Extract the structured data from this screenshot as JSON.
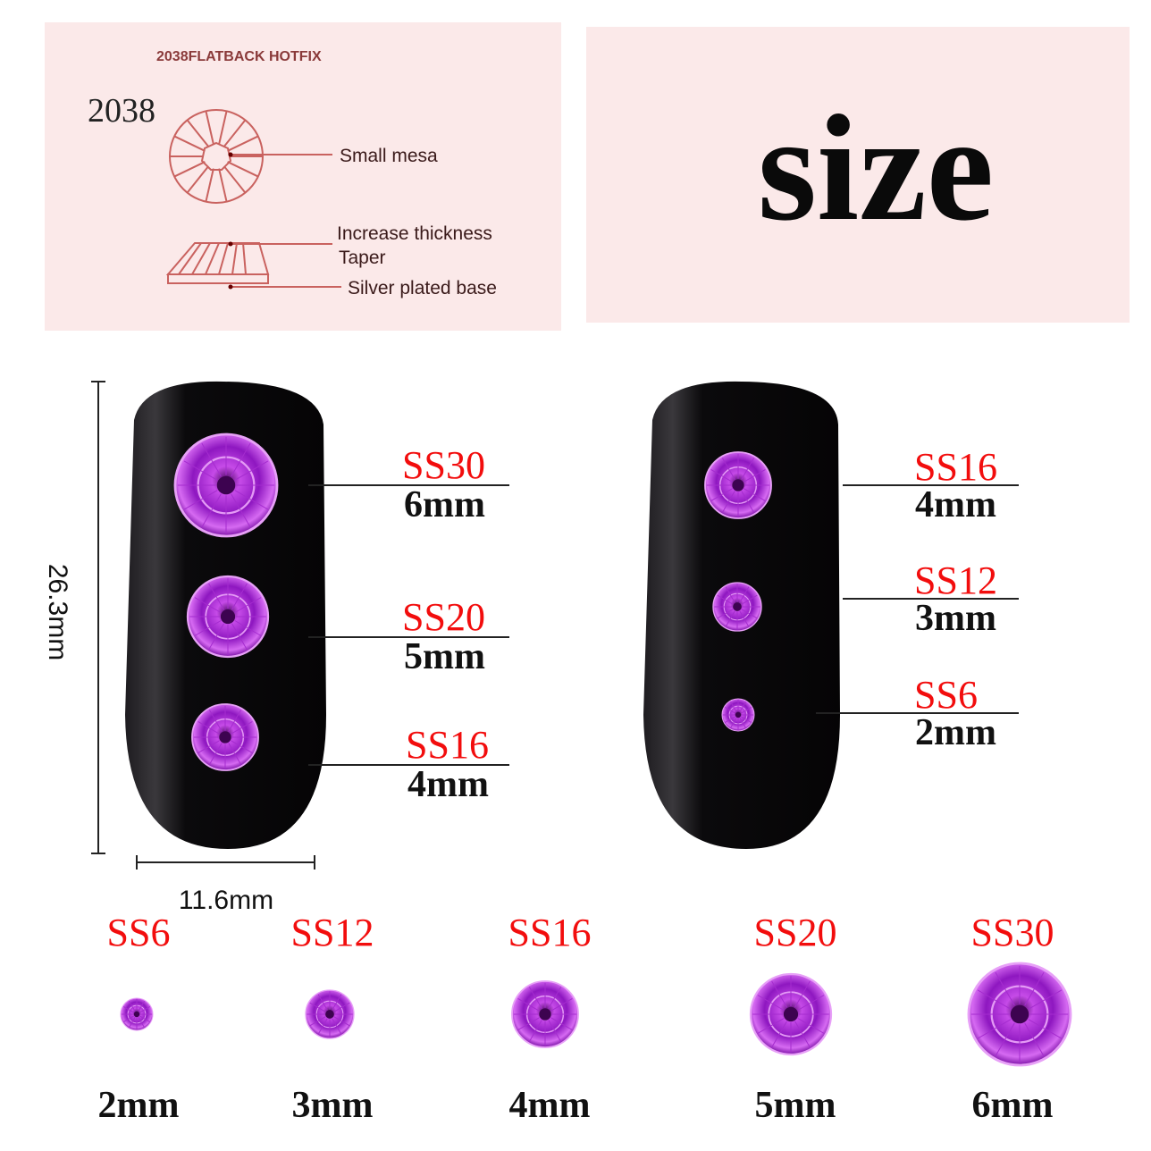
{
  "diagram": {
    "heading": "2038FLATBACK HOTFIX",
    "model": "2038",
    "labels": {
      "mesa": "Small mesa",
      "thickness": "Increase thickness",
      "taper": "Taper",
      "base": "Silver plated base"
    }
  },
  "title": "size",
  "dimensions": {
    "height": "26.3mm",
    "width": "11.6mm"
  },
  "left_nail": [
    {
      "code": "SS30",
      "size": "6mm"
    },
    {
      "code": "SS20",
      "size": "5mm"
    },
    {
      "code": "SS16",
      "size": "4mm"
    }
  ],
  "right_nail": [
    {
      "code": "SS16",
      "size": "4mm"
    },
    {
      "code": "SS12",
      "size": "3mm"
    },
    {
      "code": "SS6",
      "size": "2mm"
    }
  ],
  "samples": [
    {
      "code": "SS6",
      "size": "2mm"
    },
    {
      "code": "SS12",
      "size": "3mm"
    },
    {
      "code": "SS16",
      "size": "4mm"
    },
    {
      "code": "SS20",
      "size": "5mm"
    },
    {
      "code": "SS30",
      "size": "6mm"
    }
  ],
  "colors": {
    "panel": "#fbe9e9",
    "code_text": "#f20d0d",
    "gem": "#b020d8",
    "nail": "#0c0a0c",
    "diagram_line": "#c9625f"
  }
}
